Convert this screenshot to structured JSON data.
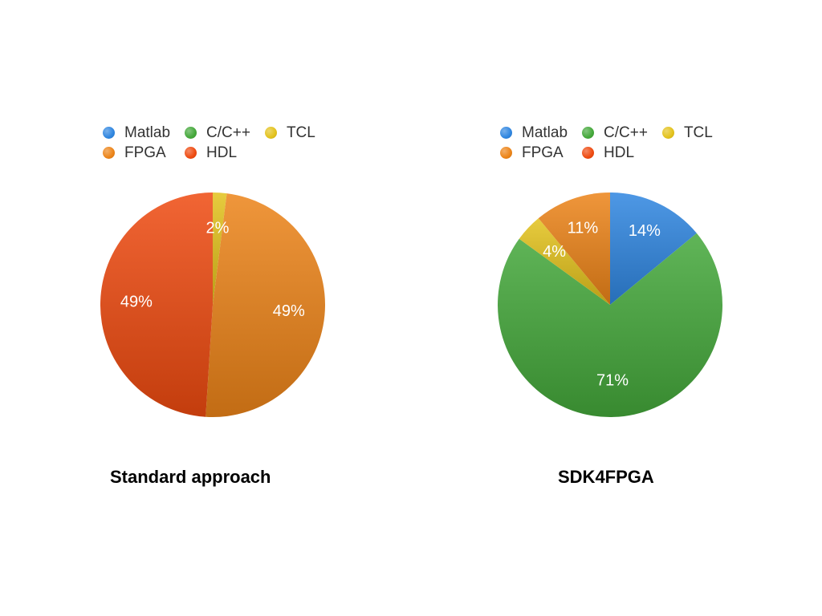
{
  "chart_data": [
    {
      "type": "pie",
      "title": "Standard approach",
      "legend": "top",
      "categories": [
        "Matlab",
        "C/C++",
        "TCL",
        "FPGA",
        "HDL"
      ],
      "values": [
        0,
        0,
        2,
        49,
        49
      ],
      "labels": [
        "",
        "",
        "2%",
        "49%",
        "49%"
      ],
      "colors": [
        "#2f86e0",
        "#44a83a",
        "#e3c21c",
        "#ec8418",
        "#ee4a10"
      ]
    },
    {
      "type": "pie",
      "title": "SDK4FPGA",
      "legend": "top",
      "categories": [
        "Matlab",
        "C/C++",
        "TCL",
        "FPGA",
        "HDL"
      ],
      "values": [
        14,
        71,
        4,
        11,
        0
      ],
      "labels": [
        "14%",
        "71%",
        "4%",
        "11%",
        ""
      ],
      "colors": [
        "#2f86e0",
        "#44a83a",
        "#e3c21c",
        "#ec8418",
        "#ee4a10"
      ]
    }
  ]
}
